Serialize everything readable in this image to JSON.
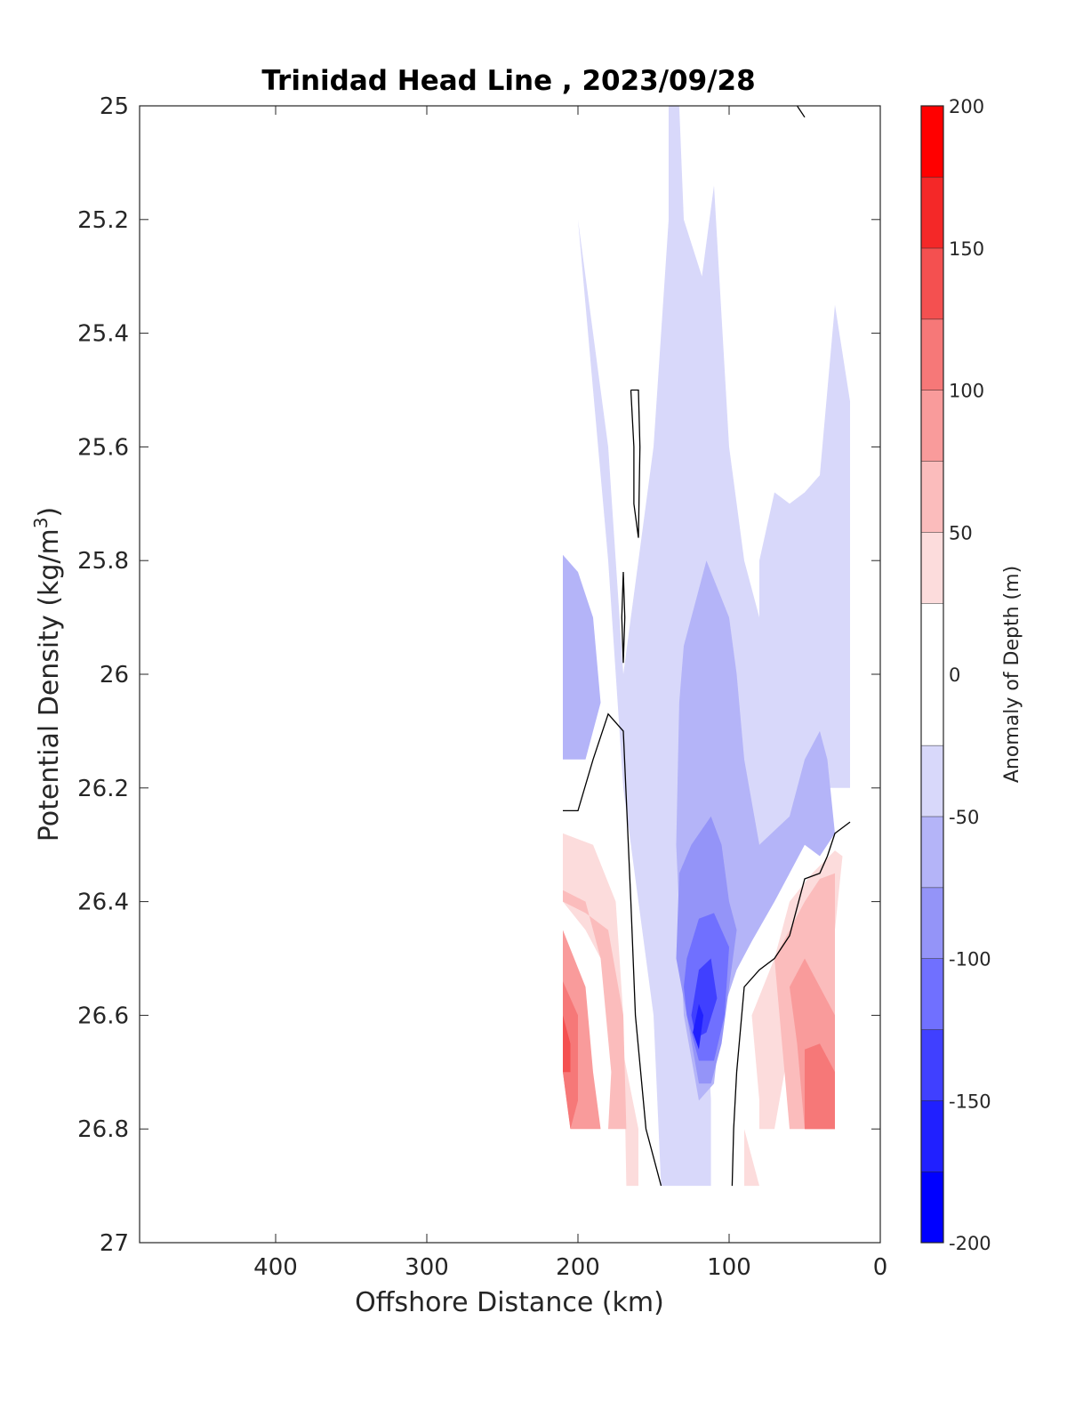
{
  "chart_data": {
    "type": "contourf",
    "title": "Trinidad Head Line , 2023/09/28",
    "xlabel": "Offshore Distance (km)",
    "ylabel": "Potential Density (kg/m",
    "ylabel_sup": "3",
    "ylabel_close": ")",
    "xlim": [
      490,
      0
    ],
    "ylim": [
      25,
      27
    ],
    "x_ticks": [
      400,
      300,
      200,
      100,
      0
    ],
    "x_tick_labels": [
      "400",
      "300",
      "200",
      "100",
      "0"
    ],
    "y_ticks": [
      25,
      25.2,
      25.4,
      25.6,
      25.8,
      26,
      26.2,
      26.4,
      26.6,
      26.8,
      27
    ],
    "y_tick_labels": [
      "25",
      "25.2",
      "25.4",
      "25.6",
      "25.8",
      "26",
      "26.2",
      "26.4",
      "26.6",
      "26.8",
      "27"
    ],
    "colorbar": {
      "label": "Anomaly of Depth (m)",
      "range": [
        -200,
        200
      ],
      "ticks": [
        -200,
        -150,
        -100,
        -50,
        0,
        50,
        100,
        150,
        200
      ],
      "tick_labels": [
        "-200",
        "-150",
        "-100",
        "-50",
        "0",
        "50",
        "100",
        "150",
        "200"
      ],
      "levels": [
        -200,
        -175,
        -150,
        -125,
        -100,
        -75,
        -50,
        -25,
        25,
        50,
        75,
        100,
        125,
        150,
        175,
        200
      ],
      "colors": [
        "#0000ff",
        "#2020ff",
        "#4040ff",
        "#7070ff",
        "#9494f8",
        "#b4b4f8",
        "#d8d8fa",
        "#ffffff",
        "#fcdcdc",
        "#fbbcbc",
        "#f99b9b",
        "#f67878",
        "#f45050",
        "#f42828",
        "#ff0000"
      ]
    },
    "regions": [
      {
        "level": -37,
        "points": [
          [
            210,
            25.14
          ],
          [
            200,
            25.2
          ],
          [
            190,
            25.5
          ],
          [
            180,
            25.8
          ],
          [
            170,
            26.2
          ],
          [
            160,
            26.4
          ],
          [
            150,
            26.6
          ],
          [
            145,
            26.9
          ],
          [
            133,
            26.9
          ],
          [
            118,
            26.9
          ],
          [
            112,
            26.9
          ],
          [
            112,
            26.75
          ],
          [
            115,
            26.6
          ],
          [
            105,
            26.45
          ],
          [
            90,
            26.35
          ],
          [
            80,
            26.3
          ],
          [
            50,
            26.26
          ],
          [
            40,
            26.2
          ],
          [
            20,
            26.2
          ],
          [
            20,
            25.52
          ],
          [
            30,
            25.35
          ],
          [
            40,
            25.65
          ],
          [
            50,
            25.68
          ],
          [
            60,
            25.7
          ],
          [
            70,
            25.68
          ],
          [
            80,
            25.8
          ],
          [
            80,
            25.9
          ],
          [
            90,
            25.8
          ],
          [
            100,
            25.6
          ],
          [
            110,
            25.14
          ],
          [
            118,
            25.3
          ],
          [
            130,
            25.2
          ],
          [
            133,
            25
          ],
          [
            140,
            25
          ],
          [
            140,
            25.2
          ],
          [
            150,
            25.6
          ],
          [
            160,
            25.8
          ],
          [
            170,
            26.0
          ],
          [
            180,
            25.6
          ],
          [
            190,
            25.4
          ],
          [
            200,
            25.2
          ],
          [
            210,
            25.14
          ]
        ]
      },
      {
        "level": -62,
        "points": [
          [
            210,
            25.79
          ],
          [
            200,
            25.82
          ],
          [
            190,
            25.9
          ],
          [
            185,
            26.05
          ],
          [
            195,
            26.15
          ],
          [
            210,
            26.15
          ]
        ]
      },
      {
        "level": -62,
        "points": [
          [
            130,
            25.95
          ],
          [
            120,
            25.85
          ],
          [
            115,
            25.8
          ],
          [
            100,
            25.9
          ],
          [
            95,
            26.0
          ],
          [
            90,
            26.15
          ],
          [
            80,
            26.3
          ],
          [
            60,
            26.25
          ],
          [
            50,
            26.15
          ],
          [
            40,
            26.1
          ],
          [
            35,
            26.15
          ],
          [
            30,
            26.28
          ],
          [
            40,
            26.32
          ],
          [
            50,
            26.3
          ],
          [
            60,
            26.35
          ],
          [
            70,
            26.4
          ],
          [
            85,
            26.47
          ],
          [
            95,
            26.52
          ],
          [
            105,
            26.6
          ],
          [
            110,
            26.72
          ],
          [
            120,
            26.75
          ],
          [
            130,
            26.6
          ],
          [
            135,
            26.3
          ],
          [
            133,
            26.05
          ]
        ]
      },
      {
        "level": -87,
        "points": [
          [
            125,
            26.3
          ],
          [
            112,
            26.25
          ],
          [
            105,
            26.3
          ],
          [
            100,
            26.4
          ],
          [
            95,
            26.45
          ],
          [
            100,
            26.55
          ],
          [
            105,
            26.65
          ],
          [
            112,
            26.72
          ],
          [
            120,
            26.72
          ],
          [
            128,
            26.6
          ],
          [
            135,
            26.5
          ],
          [
            133,
            26.35
          ]
        ]
      },
      {
        "level": -112,
        "points": [
          [
            128,
            26.5
          ],
          [
            120,
            26.43
          ],
          [
            110,
            26.42
          ],
          [
            100,
            26.48
          ],
          [
            103,
            26.6
          ],
          [
            110,
            26.68
          ],
          [
            120,
            26.68
          ],
          [
            128,
            26.6
          ],
          [
            130,
            26.55
          ]
        ]
      },
      {
        "level": -137,
        "points": [
          [
            125,
            26.6
          ],
          [
            120,
            26.52
          ],
          [
            112,
            26.5
          ],
          [
            108,
            26.57
          ],
          [
            115,
            26.63
          ],
          [
            122,
            26.64
          ]
        ]
      },
      {
        "level": -162,
        "points": [
          [
            124,
            26.63
          ],
          [
            120,
            26.58
          ],
          [
            117,
            26.6
          ],
          [
            120,
            26.66
          ]
        ]
      },
      {
        "level": 37,
        "points": [
          [
            210,
            26.28
          ],
          [
            190,
            26.3
          ],
          [
            175,
            26.4
          ],
          [
            170,
            26.6
          ],
          [
            168,
            26.9
          ],
          [
            160,
            26.9
          ],
          [
            160,
            26.8
          ],
          [
            175,
            26.6
          ],
          [
            185,
            26.5
          ],
          [
            195,
            26.45
          ],
          [
            210,
            26.4
          ]
        ]
      },
      {
        "level": 37,
        "points": [
          [
            90,
            26.8
          ],
          [
            80,
            26.9
          ],
          [
            90,
            26.9
          ]
        ]
      },
      {
        "level": 37,
        "points": [
          [
            80,
            26.75
          ],
          [
            85,
            26.6
          ],
          [
            70,
            26.5
          ],
          [
            60,
            26.4
          ],
          [
            45,
            26.35
          ],
          [
            30,
            26.31
          ],
          [
            25,
            26.32
          ],
          [
            30,
            26.45
          ],
          [
            50,
            26.5
          ],
          [
            60,
            26.65
          ],
          [
            70,
            26.8
          ],
          [
            80,
            26.8
          ]
        ]
      },
      {
        "level": 62,
        "points": [
          [
            210,
            26.38
          ],
          [
            195,
            26.4
          ],
          [
            185,
            26.5
          ],
          [
            178,
            26.7
          ],
          [
            180,
            26.8
          ],
          [
            168,
            26.8
          ],
          [
            170,
            26.6
          ],
          [
            180,
            26.45
          ],
          [
            195,
            26.42
          ],
          [
            210,
            26.4
          ]
        ]
      },
      {
        "level": 62,
        "points": [
          [
            70,
            26.5
          ],
          [
            50,
            26.4
          ],
          [
            40,
            26.36
          ],
          [
            30,
            26.35
          ],
          [
            30,
            26.8
          ],
          [
            60,
            26.8
          ],
          [
            65,
            26.65
          ]
        ]
      },
      {
        "level": 87,
        "points": [
          [
            210,
            26.45
          ],
          [
            195,
            26.55
          ],
          [
            190,
            26.7
          ],
          [
            185,
            26.8
          ],
          [
            205,
            26.8
          ],
          [
            210,
            26.7
          ]
        ]
      },
      {
        "level": 87,
        "points": [
          [
            60,
            26.55
          ],
          [
            50,
            26.5
          ],
          [
            40,
            26.55
          ],
          [
            30,
            26.6
          ],
          [
            30,
            26.8
          ],
          [
            50,
            26.8
          ],
          [
            55,
            26.65
          ]
        ]
      },
      {
        "level": 112,
        "points": [
          [
            210,
            26.54
          ],
          [
            200,
            26.6
          ],
          [
            200,
            26.75
          ],
          [
            205,
            26.8
          ],
          [
            210,
            26.7
          ]
        ]
      },
      {
        "level": 112,
        "points": [
          [
            50,
            26.66
          ],
          [
            40,
            26.65
          ],
          [
            30,
            26.7
          ],
          [
            30,
            26.8
          ],
          [
            50,
            26.8
          ]
        ]
      },
      {
        "level": 137,
        "points": [
          [
            210,
            26.6
          ],
          [
            205,
            26.65
          ],
          [
            205,
            26.7
          ],
          [
            210,
            26.7
          ]
        ]
      }
    ],
    "zero_contours": [
      [
        [
          165,
          25.5
        ],
        [
          163,
          25.6
        ],
        [
          163,
          25.7
        ],
        [
          160,
          25.76
        ],
        [
          159,
          25.6
        ],
        [
          160,
          25.5
        ],
        [
          165,
          25.5
        ]
      ],
      [
        [
          170,
          25.82
        ],
        [
          169,
          25.9
        ],
        [
          170,
          25.98
        ],
        [
          171,
          25.9
        ],
        [
          170,
          25.82
        ]
      ],
      [
        [
          210,
          26.24
        ],
        [
          200,
          26.24
        ],
        [
          190,
          26.15
        ],
        [
          180,
          26.07
        ],
        [
          170,
          26.1
        ],
        [
          165,
          26.4
        ],
        [
          162,
          26.6
        ],
        [
          155,
          26.8
        ],
        [
          145,
          26.9
        ]
      ],
      [
        [
          55,
          25.0
        ],
        [
          50,
          25.02
        ]
      ],
      [
        [
          20,
          26.26
        ],
        [
          30,
          26.28
        ],
        [
          35,
          26.32
        ],
        [
          40,
          26.35
        ],
        [
          50,
          26.36
        ],
        [
          60,
          26.46
        ],
        [
          70,
          26.5
        ],
        [
          80,
          26.52
        ],
        [
          90,
          26.55
        ],
        [
          95,
          26.7
        ],
        [
          97,
          26.8
        ],
        [
          98,
          26.9
        ]
      ]
    ]
  }
}
